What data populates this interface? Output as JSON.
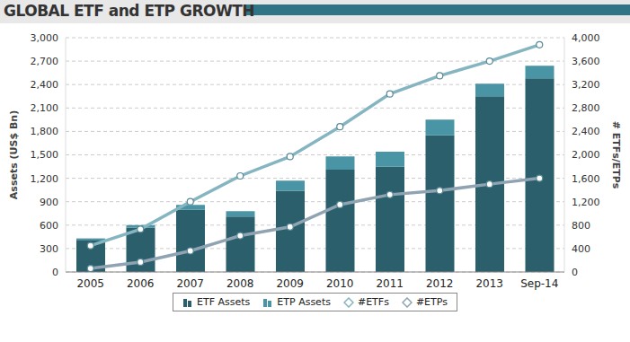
{
  "chart_data": {
    "type": "bar",
    "title": "GLOBAL ETF and ETP GROWTH",
    "categories": [
      "2005",
      "2006",
      "2007",
      "2008",
      "2009",
      "2010",
      "2011",
      "2012",
      "2013",
      "Sep-14"
    ],
    "y_label": "Assets (US$ Bn)",
    "y2_label": "# ETFs/ETPs",
    "stacked": true,
    "grid": true,
    "legend": "bottom",
    "ylim": [
      0,
      3000
    ],
    "yticks": [
      0,
      300,
      600,
      900,
      {
        "value": 1200,
        "label": "1,200"
      },
      {
        "value": 1500,
        "label": "1,500"
      },
      {
        "value": 1800,
        "label": "1,800"
      },
      {
        "value": 2100,
        "label": "2,100"
      },
      {
        "value": 2400,
        "label": "2,400"
      },
      {
        "value": 2700,
        "label": "2,700"
      },
      {
        "value": 3000,
        "label": "3,000"
      }
    ],
    "y2lim": [
      0,
      4000
    ],
    "y2ticks": [
      0,
      400,
      800,
      {
        "value": 1200,
        "label": "1,200"
      },
      {
        "value": 1600,
        "label": "1,600"
      },
      {
        "value": 2000,
        "label": "2,000"
      },
      {
        "value": 2400,
        "label": "2,400"
      },
      {
        "value": 2800,
        "label": "2,800"
      },
      {
        "value": 3200,
        "label": "3,200"
      },
      {
        "value": 3600,
        "label": "3,600"
      },
      {
        "value": 4000,
        "label": "4,000"
      }
    ],
    "series": [
      {
        "name": "ETF Assets",
        "type": "bar",
        "color": "#2b5f6c",
        "values": [
          410,
          570,
          800,
          710,
          1040,
          1310,
          1350,
          1750,
          2250,
          2480
        ]
      },
      {
        "name": "ETP Assets",
        "type": "bar",
        "color": "#4a95a5",
        "values": [
          20,
          30,
          60,
          70,
          130,
          170,
          190,
          200,
          160,
          160
        ]
      },
      {
        "name": "#ETFs",
        "type": "line",
        "axis": "y2",
        "marker": "circle",
        "color": "#86b5c2",
        "values": [
          450,
          730,
          1200,
          1640,
          1970,
          2480,
          3040,
          3350,
          3600,
          3880
        ]
      },
      {
        "name": "#ETPs",
        "type": "line",
        "axis": "y2",
        "marker": "circle",
        "color": "#8fa3b3",
        "values": [
          60,
          170,
          360,
          620,
          770,
          1150,
          1320,
          1390,
          1500,
          1600
        ]
      }
    ]
  }
}
